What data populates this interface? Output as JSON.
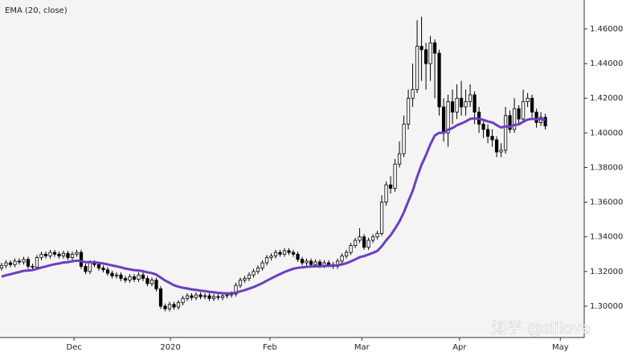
{
  "chart_data": {
    "type": "candlestick",
    "title": "EMA (20, close)",
    "watermark": "知乎 @slilova",
    "up_color": "#ffffff",
    "down_color": "#000000",
    "edge_color": "#000000",
    "xlim": [
      -0.36,
      131.8
    ],
    "xticks": [
      {
        "value": 16.4,
        "label": "Dec"
      },
      {
        "value": 38.2,
        "label": "2020"
      },
      {
        "value": 60.7,
        "label": "Feb"
      },
      {
        "value": 81.5,
        "label": "Mar"
      },
      {
        "value": 103.6,
        "label": "Apr"
      },
      {
        "value": 126.4,
        "label": "May"
      }
    ],
    "ylim": [
      1.2819,
      1.4767
    ],
    "yticks": [
      {
        "value": 1.3,
        "label": "1.30000"
      },
      {
        "value": 1.32,
        "label": "1.32000"
      },
      {
        "value": 1.34,
        "label": "1.34000"
      },
      {
        "value": 1.36,
        "label": "1.36000"
      },
      {
        "value": 1.38,
        "label": "1.38000"
      },
      {
        "value": 1.4,
        "label": "1.40000"
      },
      {
        "value": 1.42,
        "label": "1.42000"
      },
      {
        "value": 1.44,
        "label": "1.44000"
      },
      {
        "value": 1.46,
        "label": "1.46000"
      }
    ],
    "ohlc": [
      [
        1.322,
        1.325,
        1.3205,
        1.3235
      ],
      [
        1.3235,
        1.3265,
        1.322,
        1.325
      ],
      [
        1.325,
        1.3265,
        1.3225,
        1.324
      ],
      [
        1.324,
        1.3275,
        1.3225,
        1.326
      ],
      [
        1.326,
        1.3275,
        1.324,
        1.3255
      ],
      [
        1.3255,
        1.3285,
        1.324,
        1.327
      ],
      [
        1.327,
        1.3285,
        1.3215,
        1.323
      ],
      [
        1.323,
        1.3245,
        1.321,
        1.3225
      ],
      [
        1.3225,
        1.3295,
        1.321,
        1.328
      ],
      [
        1.328,
        1.3315,
        1.3265,
        1.33
      ],
      [
        1.33,
        1.3315,
        1.3275,
        1.329
      ],
      [
        1.329,
        1.3325,
        1.3275,
        1.331
      ],
      [
        1.331,
        1.3325,
        1.3285,
        1.33
      ],
      [
        1.33,
        1.3315,
        1.3275,
        1.329
      ],
      [
        1.329,
        1.332,
        1.3275,
        1.3305
      ],
      [
        1.3305,
        1.332,
        1.3265,
        1.328
      ],
      [
        1.328,
        1.3315,
        1.3265,
        1.33
      ],
      [
        1.33,
        1.3325,
        1.3285,
        1.331
      ],
      [
        1.331,
        1.3325,
        1.3215,
        1.323
      ],
      [
        1.323,
        1.3245,
        1.3185,
        1.32
      ],
      [
        1.32,
        1.3265,
        1.3185,
        1.325
      ],
      [
        1.325,
        1.3265,
        1.3225,
        1.324
      ],
      [
        1.324,
        1.3255,
        1.3205,
        1.322
      ],
      [
        1.322,
        1.3235,
        1.3195,
        1.321
      ],
      [
        1.321,
        1.3225,
        1.3175,
        1.319
      ],
      [
        1.319,
        1.3205,
        1.316,
        1.3175
      ],
      [
        1.3175,
        1.3195,
        1.316,
        1.318
      ],
      [
        1.318,
        1.3195,
        1.3145,
        1.316
      ],
      [
        1.316,
        1.3175,
        1.3135,
        1.315
      ],
      [
        1.315,
        1.3185,
        1.3135,
        1.317
      ],
      [
        1.317,
        1.3185,
        1.314,
        1.3155
      ],
      [
        1.3155,
        1.3195,
        1.314,
        1.318
      ],
      [
        1.318,
        1.3195,
        1.3145,
        1.316
      ],
      [
        1.316,
        1.3175,
        1.3115,
        1.313
      ],
      [
        1.313,
        1.3165,
        1.3115,
        1.315
      ],
      [
        1.315,
        1.3165,
        1.3085,
        1.31
      ],
      [
        1.31,
        1.3115,
        1.2985,
        1.3
      ],
      [
        1.3,
        1.3015,
        1.297,
        1.2985
      ],
      [
        1.2985,
        1.3025,
        1.297,
        1.301
      ],
      [
        1.301,
        1.3025,
        1.298,
        1.2995
      ],
      [
        1.2995,
        1.3035,
        1.298,
        1.302
      ],
      [
        1.302,
        1.306,
        1.3005,
        1.3045
      ],
      [
        1.3045,
        1.3075,
        1.303,
        1.306
      ],
      [
        1.306,
        1.3075,
        1.3035,
        1.305
      ],
      [
        1.305,
        1.308,
        1.3035,
        1.3065
      ],
      [
        1.3065,
        1.308,
        1.304,
        1.3055
      ],
      [
        1.3055,
        1.3075,
        1.304,
        1.306
      ],
      [
        1.306,
        1.3075,
        1.303,
        1.3045
      ],
      [
        1.3045,
        1.307,
        1.303,
        1.3055
      ],
      [
        1.3055,
        1.307,
        1.3035,
        1.305
      ],
      [
        1.305,
        1.3075,
        1.3035,
        1.306
      ],
      [
        1.306,
        1.308,
        1.3045,
        1.3065
      ],
      [
        1.3065,
        1.3085,
        1.305,
        1.307
      ],
      [
        1.307,
        1.3135,
        1.3055,
        1.312
      ],
      [
        1.312,
        1.3165,
        1.3105,
        1.315
      ],
      [
        1.315,
        1.3175,
        1.3135,
        1.316
      ],
      [
        1.316,
        1.3195,
        1.3145,
        1.318
      ],
      [
        1.318,
        1.3215,
        1.3165,
        1.32
      ],
      [
        1.32,
        1.3235,
        1.3185,
        1.322
      ],
      [
        1.322,
        1.3265,
        1.3205,
        1.325
      ],
      [
        1.325,
        1.3295,
        1.3235,
        1.328
      ],
      [
        1.328,
        1.3305,
        1.3265,
        1.329
      ],
      [
        1.329,
        1.3325,
        1.3275,
        1.331
      ],
      [
        1.331,
        1.3325,
        1.3285,
        1.33
      ],
      [
        1.33,
        1.3335,
        1.3285,
        1.332
      ],
      [
        1.332,
        1.3335,
        1.3295,
        1.331
      ],
      [
        1.331,
        1.3325,
        1.3285,
        1.33
      ],
      [
        1.33,
        1.3315,
        1.3255,
        1.327
      ],
      [
        1.327,
        1.3285,
        1.3235,
        1.325
      ],
      [
        1.325,
        1.3275,
        1.3235,
        1.326
      ],
      [
        1.326,
        1.3275,
        1.3225,
        1.324
      ],
      [
        1.324,
        1.327,
        1.3225,
        1.3255
      ],
      [
        1.3255,
        1.327,
        1.322,
        1.3235
      ],
      [
        1.3235,
        1.3265,
        1.322,
        1.325
      ],
      [
        1.325,
        1.3265,
        1.3225,
        1.324
      ],
      [
        1.324,
        1.3255,
        1.3215,
        1.323
      ],
      [
        1.323,
        1.3275,
        1.3215,
        1.326
      ],
      [
        1.326,
        1.3305,
        1.3245,
        1.329
      ],
      [
        1.329,
        1.3325,
        1.3275,
        1.331
      ],
      [
        1.331,
        1.3365,
        1.3295,
        1.335
      ],
      [
        1.335,
        1.3395,
        1.3335,
        1.338
      ],
      [
        1.338,
        1.345,
        1.3365,
        1.34
      ],
      [
        1.34,
        1.3415,
        1.3325,
        1.334
      ],
      [
        1.334,
        1.3395,
        1.3325,
        1.338
      ],
      [
        1.338,
        1.3415,
        1.3365,
        1.34
      ],
      [
        1.34,
        1.3435,
        1.3385,
        1.342
      ],
      [
        1.342,
        1.364,
        1.3405,
        1.36
      ],
      [
        1.36,
        1.372,
        1.358,
        1.37
      ],
      [
        1.37,
        1.375,
        1.365,
        1.368
      ],
      [
        1.368,
        1.385,
        1.366,
        1.382
      ],
      [
        1.382,
        1.395,
        1.38,
        1.388
      ],
      [
        1.388,
        1.41,
        1.386,
        1.405
      ],
      [
        1.405,
        1.425,
        1.402,
        1.42
      ],
      [
        1.42,
        1.44,
        1.415,
        1.425
      ],
      [
        1.425,
        1.465,
        1.423,
        1.45
      ],
      [
        1.45,
        1.467,
        1.43,
        1.448
      ],
      [
        1.448,
        1.452,
        1.425,
        1.44
      ],
      [
        1.44,
        1.456,
        1.43,
        1.452
      ],
      [
        1.452,
        1.454,
        1.42,
        1.446
      ],
      [
        1.446,
        1.448,
        1.41,
        1.415
      ],
      [
        1.415,
        1.42,
        1.395,
        1.4
      ],
      [
        1.4,
        1.422,
        1.392,
        1.418
      ],
      [
        1.418,
        1.425,
        1.405,
        1.412
      ],
      [
        1.412,
        1.428,
        1.408,
        1.42
      ],
      [
        1.42,
        1.43,
        1.41,
        1.415
      ],
      [
        1.415,
        1.425,
        1.41,
        1.418
      ],
      [
        1.418,
        1.428,
        1.415,
        1.422
      ],
      [
        1.422,
        1.424,
        1.405,
        1.412
      ],
      [
        1.412,
        1.415,
        1.4,
        1.405
      ],
      [
        1.405,
        1.408,
        1.397,
        1.402
      ],
      [
        1.402,
        1.405,
        1.394,
        1.398
      ],
      [
        1.398,
        1.402,
        1.392,
        1.396
      ],
      [
        1.396,
        1.398,
        1.386,
        1.389
      ],
      [
        1.389,
        1.394,
        1.386,
        1.39
      ],
      [
        1.39,
        1.415,
        1.388,
        1.41
      ],
      [
        1.41,
        1.413,
        1.4,
        1.402
      ],
      [
        1.402,
        1.42,
        1.4,
        1.414
      ],
      [
        1.414,
        1.416,
        1.405,
        1.408
      ],
      [
        1.408,
        1.425,
        1.406,
        1.418
      ],
      [
        1.418,
        1.423,
        1.415,
        1.42
      ],
      [
        1.42,
        1.422,
        1.409,
        1.412
      ],
      [
        1.412,
        1.414,
        1.403,
        1.406
      ],
      [
        1.406,
        1.412,
        1.404,
        1.409
      ],
      [
        1.409,
        1.411,
        1.402,
        1.404
      ]
    ],
    "ema": {
      "color": "#6a3fc0",
      "values": [
        1.317,
        1.3178,
        1.3184,
        1.3191,
        1.3197,
        1.3204,
        1.3206,
        1.3208,
        1.3215,
        1.3223,
        1.3229,
        1.3236,
        1.3242,
        1.3246,
        1.3252,
        1.3254,
        1.3258,
        1.3263,
        1.326,
        1.3254,
        1.3254,
        1.3253,
        1.325,
        1.3246,
        1.3241,
        1.3235,
        1.323,
        1.3224,
        1.3217,
        1.3213,
        1.3208,
        1.3206,
        1.3202,
        1.3195,
        1.3191,
        1.3182,
        1.3165,
        1.3148,
        1.3135,
        1.3121,
        1.3112,
        1.3106,
        1.3102,
        1.3097,
        1.3094,
        1.309,
        1.3087,
        1.3083,
        1.308,
        1.3077,
        1.3075,
        1.3074,
        1.3074,
        1.3078,
        1.3085,
        1.3092,
        1.3101,
        1.311,
        1.3121,
        1.3133,
        1.3147,
        1.316,
        1.3173,
        1.3185,
        1.3197,
        1.3207,
        1.3216,
        1.3221,
        1.3224,
        1.3227,
        1.3228,
        1.323,
        1.323,
        1.3232,
        1.3233,
        1.3233,
        1.3236,
        1.3241,
        1.3248,
        1.3258,
        1.327,
        1.3283,
        1.3289,
        1.3298,
        1.3308,
        1.3319,
        1.3346,
        1.338,
        1.3409,
        1.3448,
        1.3489,
        1.3542,
        1.3605,
        1.3666,
        1.3746,
        1.3816,
        1.3872,
        1.3935,
        1.3985,
        1.4001,
        1.4001,
        1.4018,
        1.4028,
        1.4044,
        1.4054,
        1.4066,
        1.4081,
        1.4084,
        1.4081,
        1.4075,
        1.4066,
        1.406,
        1.4045,
        1.4031,
        1.4038,
        1.4036,
        1.4046,
        1.4049,
        1.4064,
        1.4077,
        1.4081,
        1.4079,
        1.408,
        1.4076
      ]
    }
  }
}
